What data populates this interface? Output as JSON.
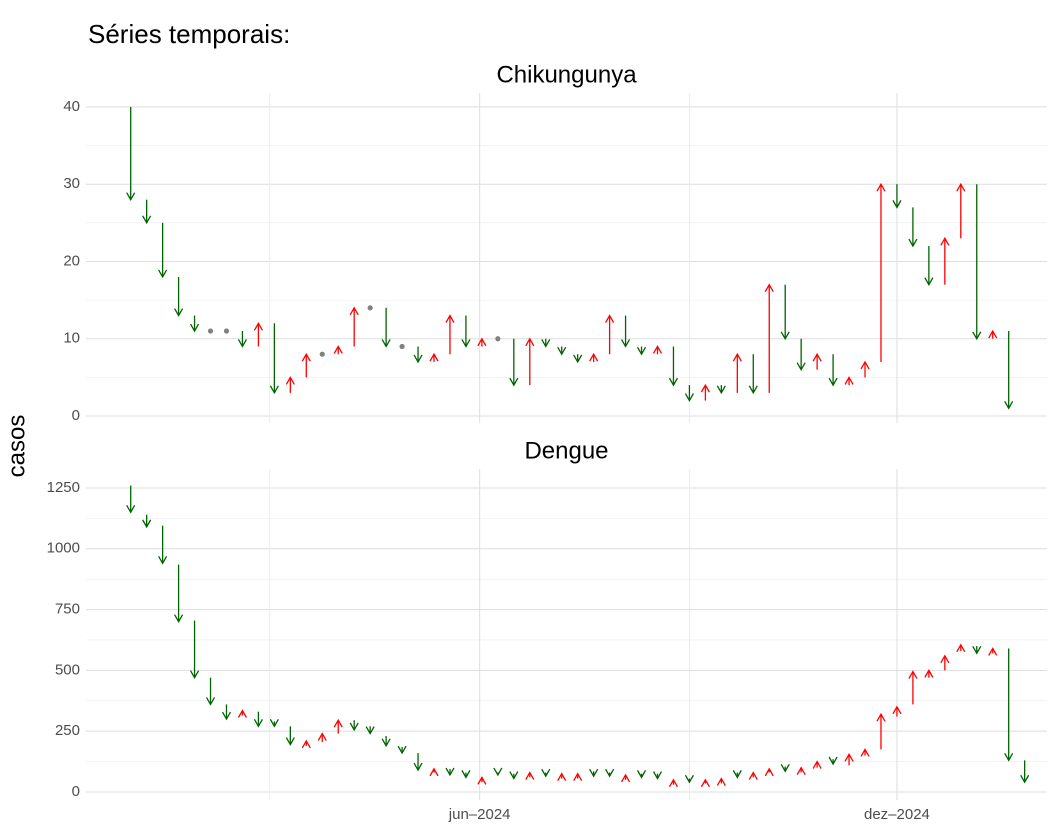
{
  "title": "Séries temporais:",
  "y_label": "casos",
  "chart_data": [
    {
      "type": "arrow",
      "title": "Chikungunya",
      "categories": [
        null,
        null,
        null,
        null,
        null,
        null,
        null,
        null,
        null,
        null,
        null,
        null,
        null,
        null,
        null,
        null,
        null,
        null,
        null,
        null,
        null,
        null,
        null,
        null,
        null,
        null,
        null,
        null,
        null,
        null,
        null,
        null,
        null,
        null,
        null,
        null,
        null,
        null,
        null,
        null,
        null,
        null,
        null,
        null,
        null,
        null,
        null,
        null,
        null,
        null,
        null,
        null,
        null,
        null,
        null,
        null,
        null
      ],
      "from": [
        40,
        28,
        25,
        18,
        13,
        11,
        11,
        11,
        9,
        12,
        3,
        5,
        8,
        8,
        9,
        14,
        14,
        9,
        9,
        7,
        8,
        13,
        9,
        10,
        10,
        4,
        10,
        9,
        8,
        7,
        8,
        13,
        9,
        8,
        9,
        4,
        2,
        4,
        3,
        8,
        3,
        17,
        10,
        6,
        8,
        4,
        5,
        7,
        30,
        27,
        22,
        17,
        23,
        30,
        10,
        11,
        null
      ],
      "to": [
        28,
        25,
        18,
        13,
        11,
        11,
        11,
        9,
        12,
        3,
        5,
        8,
        8,
        9,
        14,
        14,
        9,
        9,
        7,
        8,
        13,
        9,
        10,
        10,
        4,
        10,
        9,
        8,
        7,
        8,
        13,
        9,
        8,
        9,
        4,
        2,
        4,
        3,
        8,
        3,
        17,
        10,
        6,
        8,
        4,
        5,
        7,
        30,
        27,
        22,
        17,
        23,
        30,
        10,
        11,
        1,
        null
      ],
      "ylim": [
        -0.9,
        41.8
      ],
      "yticks": [
        0,
        10,
        20,
        30,
        40
      ],
      "xlim": [
        -2.8,
        57.4
      ],
      "xticks": [
        {
          "value": 8.71,
          "label": ""
        },
        {
          "value": 21.86,
          "label": "jun–2024"
        },
        {
          "value": 35,
          "label": ""
        },
        {
          "value": 48,
          "label": "dez–2024"
        }
      ],
      "up_color": "#ff0000",
      "down_color": "#006400",
      "equal_color": "#808080",
      "grid": true
    },
    {
      "type": "arrow",
      "title": "Dengue",
      "categories": [
        null,
        null,
        null,
        null,
        null,
        null,
        null,
        null,
        null,
        null,
        null,
        null,
        null,
        null,
        null,
        null,
        null,
        null,
        null,
        null,
        null,
        null,
        null,
        null,
        null,
        null,
        null,
        null,
        null,
        null,
        null,
        null,
        null,
        null,
        null,
        null,
        null,
        null,
        null,
        null,
        null,
        null,
        null,
        null,
        null,
        null,
        null,
        null,
        null,
        null,
        null,
        null,
        null,
        null,
        null,
        null,
        null
      ],
      "from": [
        1260,
        1140,
        1095,
        935,
        705,
        470,
        360,
        315,
        330,
        290,
        270,
        190,
        205,
        240,
        295,
        270,
        230,
        185,
        160,
        80,
        95,
        80,
        40,
        80,
        75,
        60,
        80,
        55,
        55,
        85,
        80,
        50,
        75,
        75,
        30,
        55,
        35,
        35,
        80,
        60,
        80,
        105,
        80,
        100,
        135,
        110,
        150,
        175,
        310,
        360,
        470,
        500,
        580,
        600,
        570,
        590,
        130
      ],
      "to": [
        1150,
        1090,
        940,
        700,
        470,
        360,
        300,
        335,
        270,
        270,
        195,
        210,
        240,
        295,
        255,
        240,
        190,
        160,
        90,
        95,
        70,
        60,
        60,
        70,
        55,
        80,
        65,
        75,
        75,
        65,
        65,
        70,
        60,
        55,
        50,
        40,
        50,
        55,
        60,
        80,
        95,
        85,
        100,
        125,
        115,
        155,
        175,
        320,
        350,
        495,
        500,
        560,
        605,
        570,
        590,
        130,
        40
      ],
      "ylim": [
        -33,
        1328
      ],
      "yticks": [
        0,
        250,
        500,
        750,
        1000,
        1250
      ],
      "xlim": [
        -2.8,
        57.4
      ],
      "xticks": [
        {
          "value": 8.71,
          "label": ""
        },
        {
          "value": 21.86,
          "label": "jun–2024"
        },
        {
          "value": 35,
          "label": ""
        },
        {
          "value": 48,
          "label": "dez–2024"
        }
      ],
      "up_color": "#ff0000",
      "down_color": "#006400",
      "equal_color": "#808080",
      "grid": true
    }
  ]
}
